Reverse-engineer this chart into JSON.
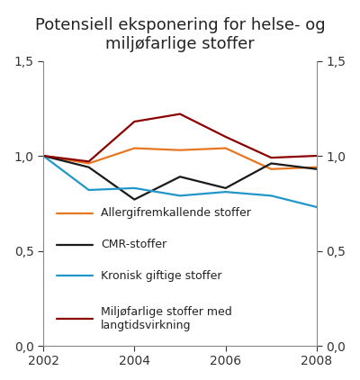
{
  "title_line1": "Potensiell eksponering for helse- og",
  "title_line2": "miljøfarlige stoffer",
  "years": [
    2002,
    2003,
    2004,
    2005,
    2006,
    2007,
    2008
  ],
  "series": [
    {
      "label": "Allergifremkallende stoffer",
      "values": [
        1.0,
        0.96,
        1.04,
        1.03,
        1.04,
        0.93,
        0.94
      ],
      "color": "#E87722"
    },
    {
      "label": "CMR-stoffer",
      "values": [
        1.0,
        0.94,
        0.77,
        0.89,
        0.83,
        0.96,
        0.93
      ],
      "color": "#1a1a1a"
    },
    {
      "label": "Kronisk giftige stoffer",
      "values": [
        1.0,
        0.82,
        0.83,
        0.79,
        0.81,
        0.79,
        0.73
      ],
      "color": "#2196C8"
    },
    {
      "label": "Miljøfarlige stoffer med\nlangtidsvirkning",
      "values": [
        1.0,
        0.97,
        1.18,
        1.22,
        1.1,
        0.99,
        1.0
      ],
      "color": "#8B0000"
    }
  ],
  "ylim": [
    0.0,
    1.5
  ],
  "yticks": [
    0.0,
    0.5,
    1.0,
    1.5
  ],
  "ytick_labels": [
    "0,0",
    "0,5",
    "1,0",
    "1,5"
  ],
  "xticks": [
    2002,
    2004,
    2006,
    2008
  ],
  "background_color": "#ffffff",
  "title_fontsize": 13,
  "legend_fontsize": 9,
  "tick_fontsize": 10,
  "linewidth": 1.6
}
